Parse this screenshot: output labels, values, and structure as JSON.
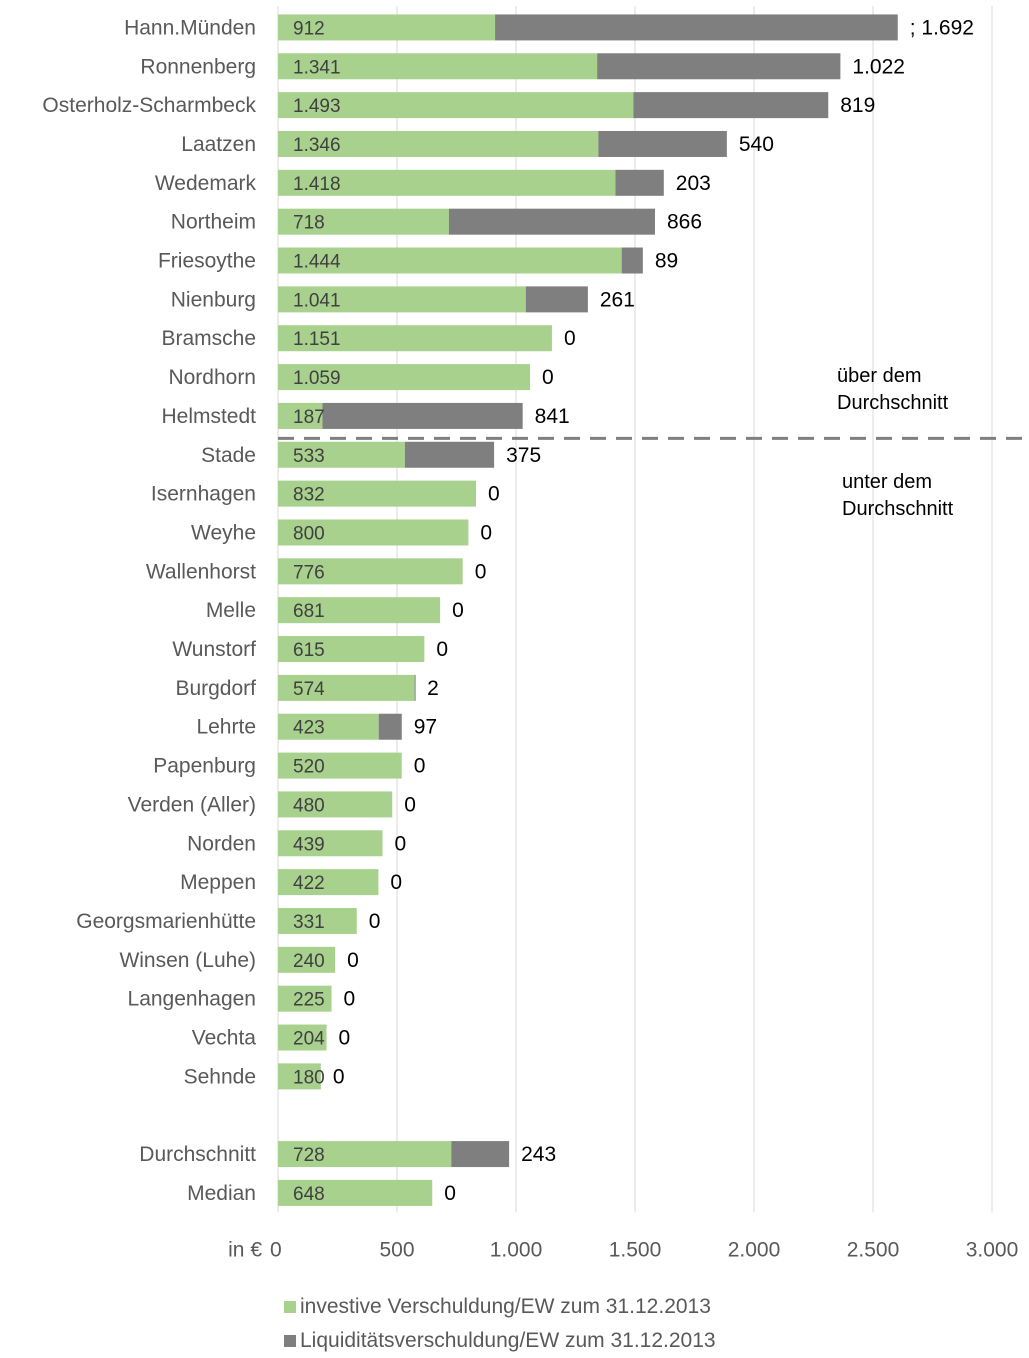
{
  "chart_data": {
    "type": "bar",
    "orientation": "horizontal",
    "stacked": true,
    "x_unit_label": "in €",
    "xlim": [
      0,
      3000
    ],
    "x_ticks": [
      "0",
      "500",
      "1.000",
      "1.500",
      "2.000",
      "2.500",
      "3.000"
    ],
    "grid": true,
    "legend_position": "bottom",
    "categories": [
      "Hann.Münden",
      "Ronnenberg",
      "Osterholz-Scharmbeck",
      "Laatzen",
      "Wedemark",
      "Northeim",
      "Friesoythe",
      "Nienburg",
      "Bramsche",
      "Nordhorn",
      "Helmstedt",
      "Stade",
      "Isernhagen",
      "Weyhe",
      "Wallenhorst",
      "Melle",
      "Wunstorf",
      "Burgdorf",
      "Lehrte",
      "Papenburg",
      "Verden (Aller)",
      "Norden",
      "Meppen",
      "Georgsmarienhütte",
      "Winsen (Luhe)",
      "Langenhagen",
      "Vechta",
      "Sehnde",
      "",
      "Durchschnitt",
      "Median"
    ],
    "series": [
      {
        "name": "investive Verschuldung/EW zum 31.12.2013",
        "color": "#a9d18e",
        "values": [
          912,
          1341,
          1493,
          1346,
          1418,
          718,
          1444,
          1041,
          1151,
          1059,
          187,
          533,
          832,
          800,
          776,
          681,
          615,
          574,
          423,
          520,
          480,
          439,
          422,
          331,
          240,
          225,
          204,
          180,
          null,
          728,
          648
        ],
        "labels": [
          "912",
          "1.341",
          "1.493",
          "1.346",
          "1.418",
          "718",
          "1.444",
          "1.041",
          "1.151",
          "1.059",
          "187",
          "533",
          "832",
          "800",
          "776",
          "681",
          "615",
          "574",
          "423",
          "520",
          "480",
          "439",
          "422",
          "331",
          "240",
          "225",
          "204",
          "180",
          "",
          "728",
          "648"
        ]
      },
      {
        "name": "Liquiditätsverschuldung/EW zum 31.12.2013",
        "color": "#7f7f7f",
        "values": [
          1692,
          1022,
          819,
          540,
          203,
          866,
          89,
          261,
          0,
          0,
          841,
          375,
          0,
          0,
          0,
          0,
          0,
          2,
          97,
          0,
          0,
          0,
          0,
          0,
          0,
          0,
          0,
          0,
          null,
          243,
          0
        ],
        "labels": [
          "; 1.692",
          "1.022",
          "819",
          "540",
          "203",
          "866",
          "89",
          "261",
          "0",
          "0",
          "841",
          "375",
          "0",
          "0",
          "0",
          "0",
          "0",
          "2",
          "97",
          "0",
          "0",
          "0",
          "0",
          "0",
          "0",
          "0",
          "0",
          "0",
          "",
          "243",
          "0"
        ]
      }
    ],
    "annotations": [
      {
        "lines": [
          "über dem",
          "Durchschnitt"
        ]
      },
      {
        "lines": [
          "unter dem",
          "Durchschnitt"
        ]
      }
    ]
  }
}
